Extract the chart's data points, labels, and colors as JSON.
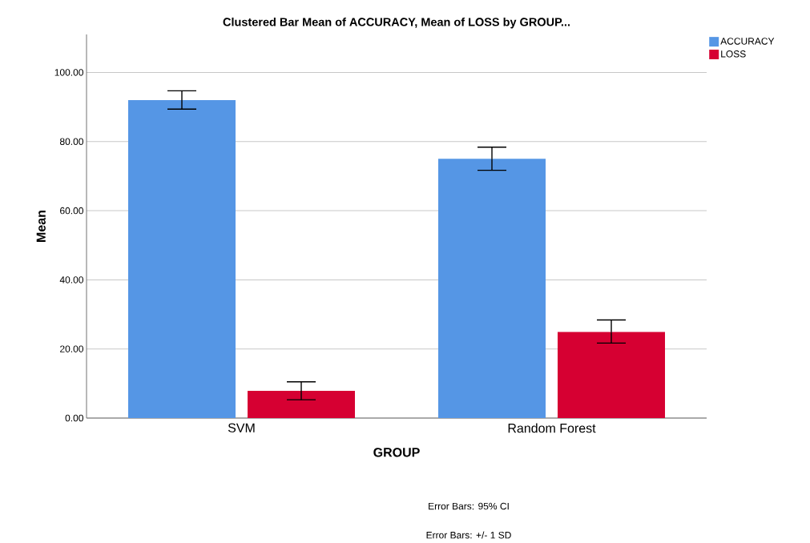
{
  "chart_data": {
    "type": "bar",
    "title": "Clustered Bar Mean of ACCURACY, Mean of LOSS by GROUP...",
    "xlabel": "GROUP",
    "ylabel": "Mean",
    "categories": [
      "SVM",
      "Random Forest"
    ],
    "series": [
      {
        "name": "ACCURACY",
        "color": "#5596e5",
        "values": [
          92.0,
          75.0
        ],
        "errors": [
          [
            89.4,
            94.7
          ],
          [
            71.7,
            78.4
          ]
        ]
      },
      {
        "name": "LOSS",
        "color": "#d60032",
        "values": [
          7.9,
          24.9
        ],
        "errors": [
          [
            5.3,
            10.5
          ],
          [
            21.7,
            28.4
          ]
        ]
      }
    ],
    "ylim": [
      0,
      111
    ],
    "yticks": [
      {
        "value": 0,
        "label": "0.00"
      },
      {
        "value": 20,
        "label": "20.00"
      },
      {
        "value": 40,
        "label": "40.00"
      },
      {
        "value": 60,
        "label": "60.00"
      },
      {
        "value": 80,
        "label": "80.00"
      },
      {
        "value": 100,
        "label": "100.00"
      }
    ],
    "grid": "y",
    "legend": "top right",
    "annotations": [
      "Error Bars: 95% CI",
      "Error Bars: +/- 1 SD"
    ]
  }
}
